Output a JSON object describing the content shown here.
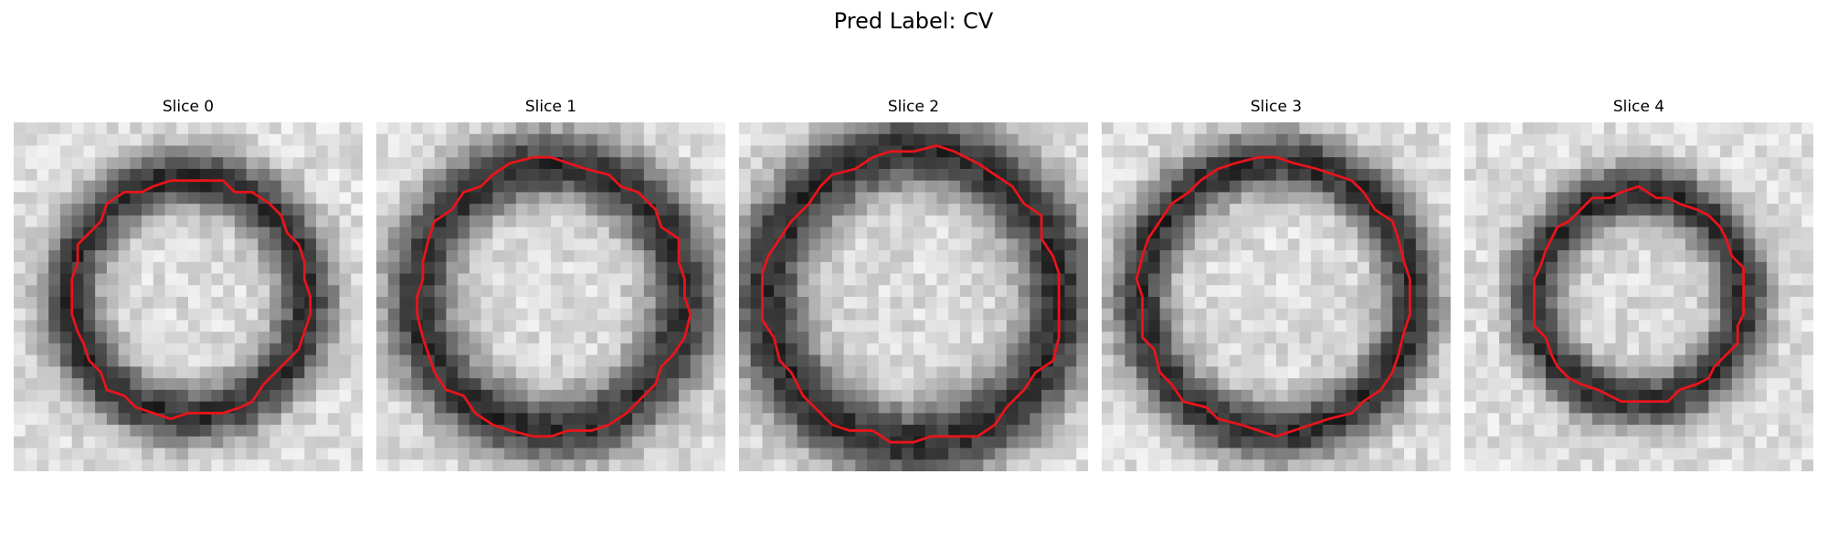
{
  "figure": {
    "title": "Pred Label: CV"
  },
  "panels": [
    {
      "title": "Slice 0",
      "ring_radius": 0.34,
      "ring_thickness": 0.085,
      "contour_radius": 0.34
    },
    {
      "title": "Slice 1",
      "ring_radius": 0.38,
      "ring_thickness": 0.1,
      "contour_radius": 0.39
    },
    {
      "title": "Slice 2",
      "ring_radius": 0.42,
      "ring_thickness": 0.11,
      "contour_radius": 0.42
    },
    {
      "title": "Slice 3",
      "ring_radius": 0.39,
      "ring_thickness": 0.085,
      "contour_radius": 0.39
    },
    {
      "title": "Slice 4",
      "ring_radius": 0.3,
      "ring_thickness": 0.08,
      "contour_radius": 0.3
    }
  ],
  "colors": {
    "contour": "#e8141c",
    "background": "#ffffff"
  }
}
